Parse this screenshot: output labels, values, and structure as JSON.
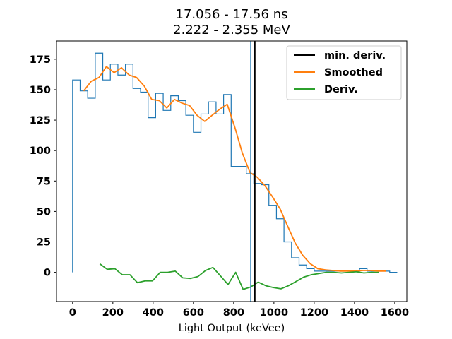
{
  "chart_data": {
    "type": "line",
    "title_lines": [
      "17.056 - 17.56 ns",
      "2.222 - 2.355 MeV"
    ],
    "xlabel": "Light Output (keVee)",
    "ylabel": "",
    "xlim": [
      -80,
      1660
    ],
    "ylim": [
      -24,
      190
    ],
    "xticks": [
      0,
      200,
      400,
      600,
      800,
      1000,
      1200,
      1400,
      1600
    ],
    "yticks": [
      0,
      25,
      50,
      75,
      100,
      125,
      150,
      175
    ],
    "grid": false,
    "legend_position": "top-right",
    "legend": [
      "min. deriv.",
      "Smoothed",
      "Deriv."
    ],
    "histogram": {
      "color": "#1f77b4",
      "edges": [
        0,
        37.5,
        75,
        112.5,
        150,
        187.5,
        225,
        262.5,
        300,
        337.5,
        375,
        412.5,
        450,
        487.5,
        525,
        562.5,
        600,
        637.5,
        675,
        712.5,
        750,
        787.5,
        825,
        862.5,
        900,
        937.5,
        975,
        1012.5,
        1050,
        1087.5,
        1125,
        1162.5,
        1200,
        1237.5,
        1275,
        1312.5,
        1350,
        1387.5,
        1425,
        1462.5,
        1500,
        1537.5,
        1575,
        1612.5
      ],
      "counts": [
        158,
        149,
        143,
        180,
        158,
        171,
        162,
        171,
        151,
        148,
        127,
        147,
        133,
        145,
        141,
        129,
        115,
        130,
        140,
        130,
        146,
        87,
        87,
        81,
        73,
        72,
        55,
        44,
        25,
        12,
        6,
        3,
        1,
        1,
        1,
        1,
        1,
        1,
        3,
        1,
        1,
        1,
        0
      ]
    },
    "series": [
      {
        "name": "Smoothed",
        "color": "#ff7f0e",
        "x": [
          55,
          93,
          131,
          168,
          206,
          243,
          281,
          318,
          356,
          393,
          431,
          468,
          506,
          543,
          581,
          618,
          656,
          693,
          731,
          768,
          806,
          843,
          881,
          918,
          956,
          993,
          1031,
          1068,
          1106,
          1143,
          1181,
          1218,
          1256,
          1293,
          1331,
          1368,
          1406,
          1443,
          1481,
          1518,
          1556
        ],
        "values": [
          149,
          157,
          160,
          169,
          164,
          168,
          162,
          160,
          153,
          142,
          141,
          135,
          142,
          139,
          137,
          129,
          124,
          129,
          134,
          138,
          119,
          98,
          82,
          78,
          71,
          62,
          52,
          38,
          24,
          14,
          7,
          3,
          2,
          1.5,
          1,
          1,
          1,
          1.5,
          1.5,
          1,
          1
        ]
      },
      {
        "name": "Deriv.",
        "color": "#2ca02c",
        "x": [
          135,
          172,
          210,
          247,
          285,
          322,
          360,
          397,
          435,
          472,
          510,
          547,
          585,
          622,
          660,
          697,
          735,
          772,
          810,
          847,
          885,
          922,
          960,
          997,
          1035,
          1072,
          1110,
          1147,
          1185,
          1222,
          1260,
          1297,
          1335,
          1372,
          1410,
          1447,
          1485,
          1522
        ],
        "values": [
          7,
          2.5,
          3,
          -2,
          -2,
          -8.5,
          -7,
          -7,
          0,
          0,
          1,
          -4.5,
          -5,
          -3.5,
          1.5,
          4,
          -3,
          -10,
          0,
          -14,
          -12,
          -8,
          -11,
          -12.5,
          -13.5,
          -11,
          -7.5,
          -4,
          -2,
          -1,
          0,
          0,
          -0.5,
          0,
          0.5,
          -0.5,
          0,
          0
        ]
      }
    ],
    "vlines": [
      {
        "name": "min. deriv.",
        "x": 905,
        "color": "#000000"
      },
      {
        "x": 885,
        "color": "#1f77b4"
      }
    ]
  }
}
